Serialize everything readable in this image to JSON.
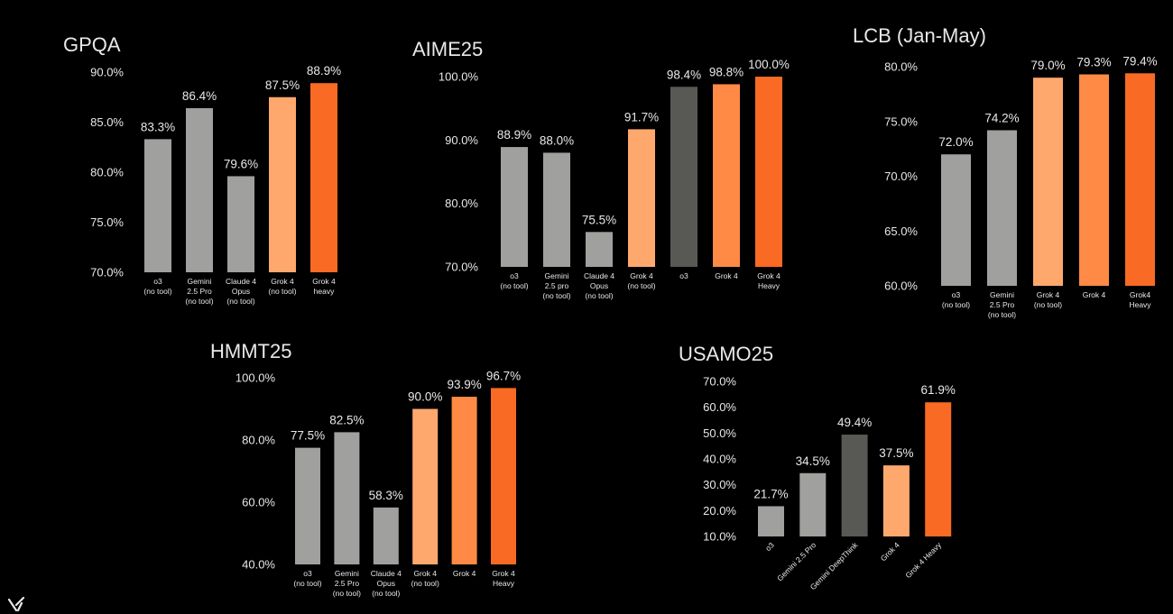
{
  "colors": {
    "background": "#000000",
    "gray": "#a0a09e",
    "dark_gray": "#585855",
    "light_orange": "#ffa86e",
    "mid_orange": "#ff8a45",
    "orange": "#f96a24",
    "text": "#e8e8e8"
  },
  "icons": {
    "corner_logo": "xai-logo-icon"
  },
  "chart_data": [
    {
      "type": "bar",
      "title": "GPQA",
      "categories": [
        "o3\n(no tool)",
        "Gemini\n2.5 Pro\n(no tool)",
        "Claude 4\nOpus\n(no tool)",
        "Grok 4\n(no tool)",
        "Grok 4\nheavy"
      ],
      "values": [
        83.3,
        86.4,
        79.6,
        87.5,
        88.9
      ],
      "value_labels": [
        "83.3%",
        "86.4%",
        "79.6%",
        "87.5%",
        "88.9%"
      ],
      "bar_colors": [
        "gray",
        "gray",
        "gray",
        "light_orange",
        "orange"
      ],
      "ylim": [
        70,
        90
      ],
      "yticks": [
        70,
        75,
        80,
        85,
        90
      ],
      "ytick_labels": [
        "70.0%",
        "75.0%",
        "80.0%",
        "85.0%",
        "90.0%"
      ],
      "xlabel": "",
      "ylabel": "",
      "grid": false,
      "legend": "none"
    },
    {
      "type": "bar",
      "title": "AIME25",
      "categories": [
        "o3\n(no tool)",
        "Gemini\n2.5 pro\n(no tool)",
        "Claude 4\nOpus\n(no tool)",
        "Grok 4\n(no tool)",
        "o3",
        "Grok 4",
        "Grok 4\nHeavy"
      ],
      "values": [
        88.9,
        88.0,
        75.5,
        91.7,
        98.4,
        98.8,
        100.0
      ],
      "value_labels": [
        "88.9%",
        "88.0%",
        "75.5%",
        "91.7%",
        "98.4%",
        "98.8%",
        "100.0%"
      ],
      "bar_colors": [
        "gray",
        "gray",
        "gray",
        "light_orange",
        "dark_gray",
        "mid_orange",
        "orange"
      ],
      "ylim": [
        70,
        100
      ],
      "yticks": [
        70,
        80,
        90,
        100
      ],
      "ytick_labels": [
        "70.0%",
        "80.0%",
        "90.0%",
        "100.0%"
      ],
      "xlabel": "",
      "ylabel": "",
      "grid": false,
      "legend": "none"
    },
    {
      "type": "bar",
      "title": "LCB (Jan-May)",
      "categories": [
        "o3\n(no tool)",
        "Gemini\n2.5 Pro\n(no tool)",
        "Grok 4\n(no tool)",
        "Grok 4",
        "Grok4\nHeavy"
      ],
      "values": [
        72.0,
        74.2,
        79.0,
        79.3,
        79.4
      ],
      "value_labels": [
        "72.0%",
        "74.2%",
        "79.0%",
        "79.3%",
        "79.4%"
      ],
      "bar_colors": [
        "gray",
        "gray",
        "light_orange",
        "mid_orange",
        "orange"
      ],
      "ylim": [
        60,
        80
      ],
      "yticks": [
        60,
        65,
        70,
        75,
        80
      ],
      "ytick_labels": [
        "60.0%",
        "65.0%",
        "70.0%",
        "75.0%",
        "80.0%"
      ],
      "xlabel": "",
      "ylabel": "",
      "grid": false,
      "legend": "none"
    },
    {
      "type": "bar",
      "title": "HMMT25",
      "categories": [
        "o3\n(no tool)",
        "Gemini\n2.5 Pro\n(no tool)",
        "Claude 4\nOpus\n(no tool)",
        "Grok 4\n(no tool)",
        "Grok 4",
        "Grok 4\nHeavy"
      ],
      "values": [
        77.5,
        82.5,
        58.3,
        90.0,
        93.9,
        96.7
      ],
      "value_labels": [
        "77.5%",
        "82.5%",
        "58.3%",
        "90.0%",
        "93.9%",
        "96.7%"
      ],
      "bar_colors": [
        "gray",
        "gray",
        "gray",
        "light_orange",
        "mid_orange",
        "orange"
      ],
      "ylim": [
        40,
        100
      ],
      "yticks": [
        40,
        60,
        80,
        100
      ],
      "ytick_labels": [
        "40.0%",
        "60.0%",
        "80.0%",
        "100.0%"
      ],
      "xlabel": "",
      "ylabel": "",
      "grid": false,
      "legend": "none"
    },
    {
      "type": "bar",
      "title": "USAMO25",
      "categories": [
        "o3",
        "Gemini 2.5 Pro",
        "Gemini DeepThink",
        "Grok 4",
        "Grok 4 Heavy"
      ],
      "values": [
        21.7,
        34.5,
        49.4,
        37.5,
        61.9
      ],
      "value_labels": [
        "21.7%",
        "",
        "49.4%",
        "37.5%",
        "61.9%"
      ],
      "label_above": [
        "34.5%"
      ],
      "bar_colors": [
        "gray",
        "gray",
        "dark_gray",
        "light_orange",
        "orange"
      ],
      "ylim": [
        10,
        70
      ],
      "yticks": [
        10,
        20,
        30,
        40,
        50,
        60,
        70
      ],
      "ytick_labels": [
        "10.0%",
        "20.0%",
        "30.0%",
        "40.0%",
        "50.0%",
        "60.0%",
        "70.0%"
      ],
      "rotated_categories": true,
      "xlabel": "",
      "ylabel": "",
      "grid": false,
      "legend": "none"
    }
  ]
}
